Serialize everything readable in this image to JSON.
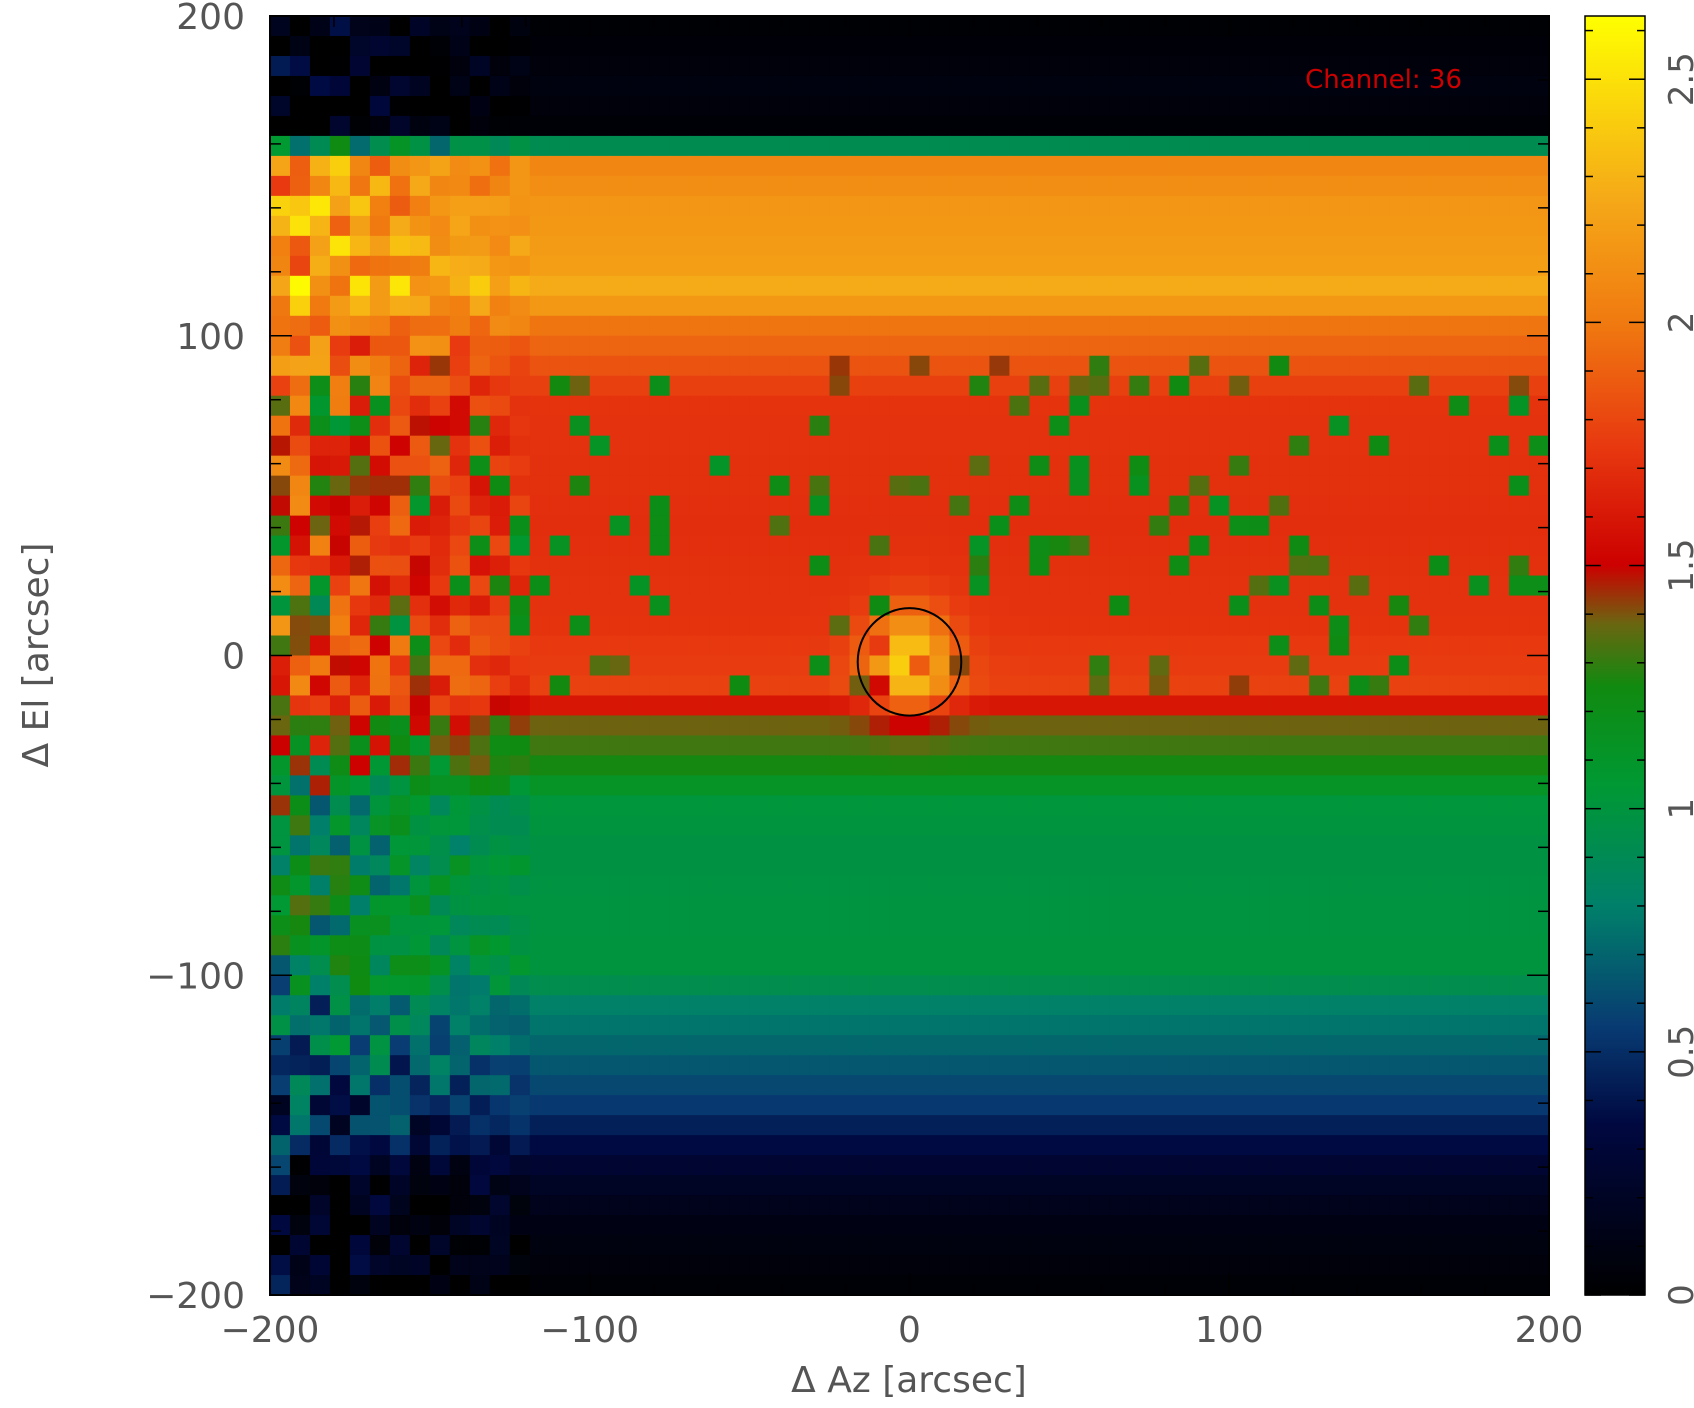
{
  "chart_data": {
    "type": "heatmap",
    "title": "",
    "annotation": "Channel: 36",
    "annotation_color": "#cc0000",
    "xlabel": "Δ Az [arcsec]",
    "ylabel": "Δ El [arcsec]",
    "xlim": [
      -200,
      200
    ],
    "ylim": [
      -200,
      200
    ],
    "xticks": [
      -200,
      -100,
      0,
      100,
      200
    ],
    "yticks": [
      -200,
      -100,
      0,
      100,
      200
    ],
    "xtick_labels": [
      "−200",
      "−100",
      "0",
      "100",
      "200"
    ],
    "ytick_labels": [
      "−200",
      "−100",
      "0",
      "100",
      "200"
    ],
    "colorbar": {
      "range": [
        0,
        2.63
      ],
      "ticks": [
        0,
        0.5,
        1,
        1.5,
        2,
        2.5
      ],
      "tick_labels": [
        "0",
        "0.5",
        "1",
        "1.5",
        "2",
        "2.5"
      ],
      "colormap": [
        {
          "v": 0.0,
          "color": "#000000"
        },
        {
          "v": 0.35,
          "color": "#000840"
        },
        {
          "v": 0.55,
          "color": "#083a72"
        },
        {
          "v": 0.8,
          "color": "#00806a"
        },
        {
          "v": 1.05,
          "color": "#009933"
        },
        {
          "v": 1.25,
          "color": "#108a10"
        },
        {
          "v": 1.38,
          "color": "#6a6610"
        },
        {
          "v": 1.5,
          "color": "#cc0000"
        },
        {
          "v": 1.75,
          "color": "#e83a10"
        },
        {
          "v": 2.0,
          "color": "#f07a10"
        },
        {
          "v": 2.25,
          "color": "#f5a818"
        },
        {
          "v": 2.63,
          "color": "#ffff00"
        }
      ]
    },
    "elevation_profile": [
      {
        "el": 200,
        "value": 0.02
      },
      {
        "el": 178,
        "value": 0.08
      },
      {
        "el": 168,
        "value": 0.04
      },
      {
        "el": 162,
        "value": 0.03
      },
      {
        "el": 156,
        "value": 2.05
      },
      {
        "el": 140,
        "value": 2.15
      },
      {
        "el": 120,
        "value": 2.2
      },
      {
        "el": 113,
        "value": 2.3
      },
      {
        "el": 105,
        "value": 2.0
      },
      {
        "el": 95,
        "value": 1.9
      },
      {
        "el": 80,
        "value": 1.72
      },
      {
        "el": 40,
        "value": 1.7
      },
      {
        "el": 10,
        "value": 1.72
      },
      {
        "el": -10,
        "value": 1.78
      },
      {
        "el": -17,
        "value": 1.55
      },
      {
        "el": -22,
        "value": 1.38
      },
      {
        "el": -35,
        "value": 1.25
      },
      {
        "el": -45,
        "value": 1.02
      },
      {
        "el": -60,
        "value": 0.98
      },
      {
        "el": -100,
        "value": 1.0
      },
      {
        "el": -108,
        "value": 0.82
      },
      {
        "el": -125,
        "value": 0.68
      },
      {
        "el": -140,
        "value": 0.55
      },
      {
        "el": -150,
        "value": 0.4
      },
      {
        "el": -160,
        "value": 0.26
      },
      {
        "el": -175,
        "value": 0.12
      },
      {
        "el": -200,
        "value": 0.02
      }
    ],
    "source": {
      "az": 0,
      "el": -2,
      "peak": 2.4,
      "beam_major_arcsec": 18,
      "beam_minor_arcsec": 21
    }
  }
}
